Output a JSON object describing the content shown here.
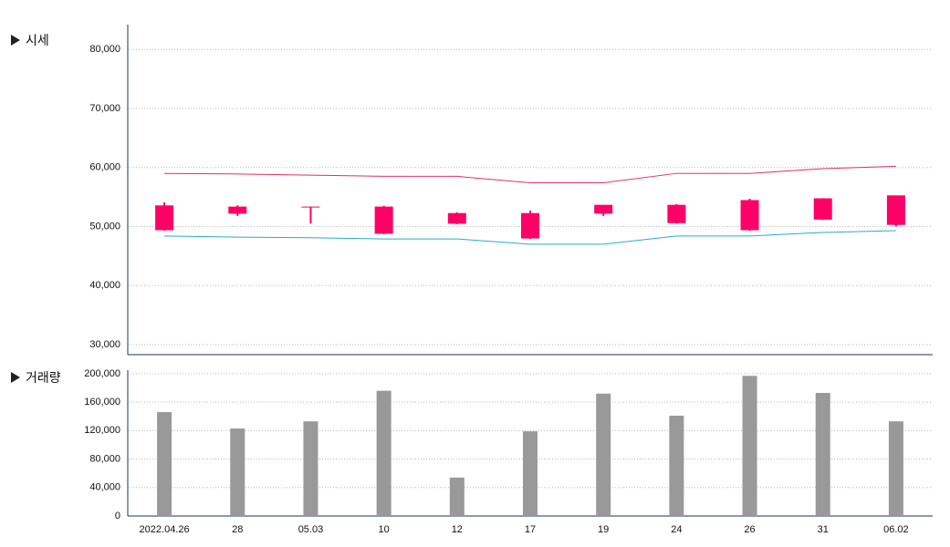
{
  "chart_data": {
    "type": "candlestick",
    "title": "시세",
    "categories": [
      "2022.04.26",
      "28",
      "05.03",
      "10",
      "12",
      "17",
      "19",
      "24",
      "26",
      "31",
      "06.02"
    ],
    "open": [
      49300,
      52100,
      53300,
      48700,
      50400,
      47900,
      52100,
      50500,
      49300,
      51100,
      50200
    ],
    "high": [
      54100,
      53600,
      53300,
      53500,
      52400,
      52700,
      53600,
      53800,
      54700,
      54800,
      55200
    ],
    "low": [
      49300,
      51800,
      50500,
      48700,
      50400,
      47900,
      51800,
      50500,
      49300,
      51100,
      50000
    ],
    "close": [
      53500,
      53300,
      53300,
      53300,
      52200,
      52200,
      53600,
      53600,
      54400,
      54700,
      55200
    ],
    "color": "#ff0066",
    "bands": [
      {
        "color": "#e0306a",
        "values": [
          59000,
          58900,
          58700,
          58500,
          58500,
          57400,
          57400,
          59000,
          59000,
          59800,
          60200
        ]
      },
      {
        "color": "#2aa8d8",
        "values": [
          48400,
          48200,
          48100,
          47900,
          47900,
          47000,
          47000,
          48400,
          48400,
          49000,
          49300
        ]
      }
    ],
    "ylim": [
      28300,
      84200
    ],
    "yticks": [
      {
        "value": 30000,
        "label": "30,000"
      },
      {
        "value": 40000,
        "label": "40,000"
      },
      {
        "value": 50000,
        "label": "50,000"
      },
      {
        "value": 60000,
        "label": "60,000"
      },
      {
        "value": 70000,
        "label": "70,000"
      },
      {
        "value": 80000,
        "label": "80,000"
      }
    ],
    "grid": true,
    "volume": {
      "type": "bar",
      "title": "거래량",
      "color": "#999999",
      "values": [
        146000,
        123000,
        133000,
        176000,
        54000,
        119000,
        172000,
        141000,
        197000,
        173000,
        133000
      ],
      "ylim": [
        0,
        205000
      ],
      "yticks": [
        0,
        {
          "value": 40000,
          "label": "40,000"
        },
        {
          "value": 80000,
          "label": "80,000"
        },
        {
          "value": 120000,
          "label": "120,000"
        },
        {
          "value": 160000,
          "label": "160,000"
        },
        {
          "value": 200000,
          "label": "200,000"
        }
      ]
    }
  }
}
